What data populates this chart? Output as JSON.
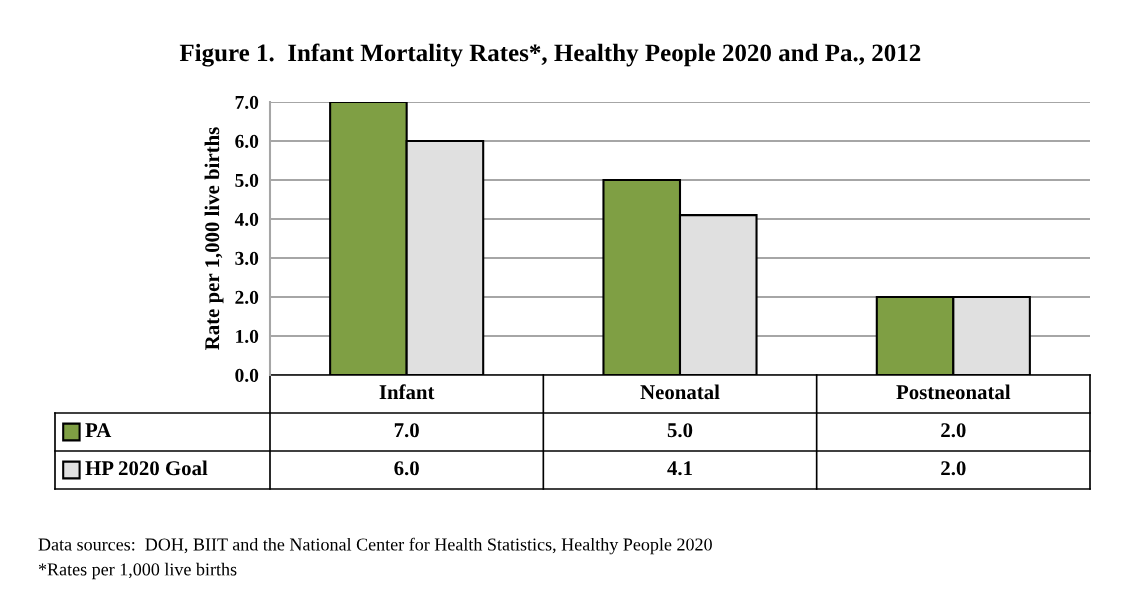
{
  "chart_data": {
    "type": "bar",
    "title": "Figure 1.  Infant Mortality Rates*, Healthy People 2020 and Pa., 2012",
    "ylabel": "Rate per 1,000 live births",
    "categories": [
      "Infant",
      "Neonatal",
      "Postneonatal"
    ],
    "series": [
      {
        "name": "PA",
        "color": "#7f9f44",
        "values": [
          7.0,
          5.0,
          2.0
        ],
        "value_labels": [
          "7.0",
          "5.0",
          "2.0"
        ]
      },
      {
        "name": "HP 2020 Goal",
        "color": "#e0e0e0",
        "values": [
          6.0,
          4.1,
          2.0
        ],
        "value_labels": [
          "6.0",
          "4.1",
          "2.0"
        ]
      }
    ],
    "ylim": [
      0,
      7
    ],
    "yticks": [
      {
        "value": 0,
        "label": "0.0"
      },
      {
        "value": 1,
        "label": "1.0"
      },
      {
        "value": 2,
        "label": "2.0"
      },
      {
        "value": 3,
        "label": "3.0"
      },
      {
        "value": 4,
        "label": "4.0"
      },
      {
        "value": 5,
        "label": "5.0"
      },
      {
        "value": 6,
        "label": "6.0"
      },
      {
        "value": 7,
        "label": "7.0"
      }
    ],
    "grid": "y",
    "legend": "bottom",
    "annotations": [
      "Data sources:  DOH, BIIT and the National Center for Health Statistics, Healthy People 2020",
      "*Rates per 1,000 live births"
    ]
  }
}
